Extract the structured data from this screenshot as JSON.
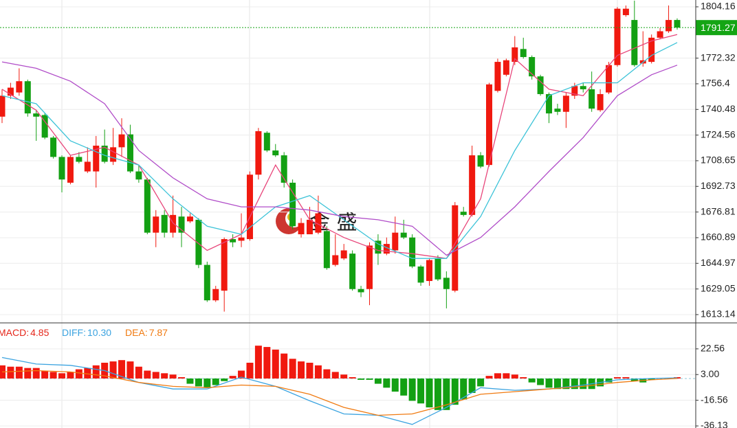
{
  "chart_data": [
    {
      "type": "candlestick",
      "open": [
        1736,
        1749,
        1751,
        1758,
        1738,
        1737,
        1723,
        1711,
        1695,
        1711,
        1702,
        1702,
        1718,
        1708,
        1717,
        1725,
        1702,
        1697,
        1664,
        1675,
        1664,
        1674,
        1671,
        1672,
        1644,
        1622,
        1628,
        1660,
        1659,
        1660,
        1700,
        1726,
        1715,
        1712,
        1695,
        1663,
        1663,
        1664,
        1665,
        1644,
        1648,
        1651,
        1629,
        1629,
        1659,
        1651,
        1653,
        1664,
        1661,
        1643,
        1634,
        1648,
        1636,
        1628,
        1677,
        1675,
        1712,
        1706,
        1752,
        1762,
        1770,
        1778,
        1773,
        1761,
        1750,
        1741,
        1739,
        1749,
        1755,
        1753,
        1740,
        1751,
        1768,
        1799,
        1796,
        1769,
        1770,
        1785,
        1789,
        1796
      ],
      "high": [
        1753,
        1757,
        1766,
        1759,
        1740,
        1738,
        1724,
        1712,
        1712,
        1714,
        1717,
        1724,
        1728,
        1729,
        1735,
        1731,
        1706,
        1698,
        1678,
        1678,
        1687,
        1680,
        1676,
        1673,
        1646,
        1631,
        1661,
        1663,
        1676,
        1702,
        1729,
        1727,
        1719,
        1714,
        1697,
        1673,
        1680,
        1687,
        1668,
        1663,
        1657,
        1653,
        1631,
        1658,
        1663,
        1661,
        1674,
        1672,
        1663,
        1644,
        1648,
        1650,
        1640,
        1683,
        1680,
        1718,
        1714,
        1757,
        1772,
        1772,
        1786,
        1785,
        1774,
        1762,
        1751,
        1744,
        1751,
        1757,
        1757,
        1764,
        1753,
        1770,
        1804,
        1805,
        1808,
        1789,
        1787,
        1791,
        1805,
        1797
      ],
      "low": [
        1732,
        1747,
        1749,
        1736,
        1721,
        1722,
        1710,
        1689,
        1694,
        1707,
        1701,
        1692,
        1707,
        1706,
        1711,
        1701,
        1695,
        1663,
        1655,
        1661,
        1661,
        1655,
        1670,
        1642,
        1621,
        1621,
        1615,
        1655,
        1655,
        1659,
        1697,
        1714,
        1711,
        1692,
        1666,
        1661,
        1663,
        1663,
        1641,
        1643,
        1647,
        1628,
        1624,
        1619,
        1644,
        1650,
        1651,
        1660,
        1642,
        1631,
        1631,
        1634,
        1617,
        1627,
        1674,
        1674,
        1704,
        1705,
        1751,
        1761,
        1768,
        1772,
        1759,
        1749,
        1732,
        1737,
        1729,
        1747,
        1751,
        1739,
        1739,
        1750,
        1767,
        1798,
        1767,
        1767,
        1769,
        1784,
        1788,
        1790
      ],
      "close": [
        1749,
        1754,
        1758,
        1738,
        1736,
        1723,
        1711,
        1697,
        1711,
        1708,
        1708,
        1718,
        1708,
        1717,
        1725,
        1702,
        1697,
        1664,
        1674,
        1664,
        1675,
        1664,
        1674,
        1644,
        1622,
        1629,
        1660,
        1658,
        1661,
        1700,
        1727,
        1715,
        1712,
        1695,
        1668,
        1670,
        1672,
        1676,
        1642,
        1650,
        1653,
        1629,
        1627,
        1656,
        1651,
        1657,
        1664,
        1661,
        1643,
        1633,
        1647,
        1635,
        1629,
        1681,
        1675,
        1712,
        1705,
        1756,
        1770,
        1771,
        1779,
        1773,
        1761,
        1750,
        1738,
        1739,
        1749,
        1755,
        1753,
        1741,
        1750,
        1768,
        1803,
        1803,
        1768,
        1771,
        1785,
        1789,
        1796,
        1791.27
      ],
      "up_color": "#f0190f",
      "down_color": "#13a013",
      "ylim": [
        1608,
        1808.4
      ],
      "yticks": [
        1613.14,
        1629.05,
        1644.97,
        1660.89,
        1676.81,
        1692.73,
        1708.65,
        1724.56,
        1740.48,
        1756.4,
        1772.32,
        1804.16
      ],
      "grid": true,
      "last_price": 1791.27,
      "last_price_color": "#14a514",
      "lines": [
        {
          "x": [
            0,
            4,
            8,
            12,
            16,
            20,
            24,
            28,
            32,
            36,
            40,
            44,
            48,
            52,
            56,
            60,
            64,
            68,
            72,
            76,
            79
          ],
          "values": [
            1753,
            1740,
            1712,
            1717,
            1706,
            1670,
            1653,
            1663,
            1706,
            1672,
            1661,
            1653,
            1651,
            1648,
            1685,
            1772,
            1753,
            1749,
            1774,
            1783,
            1787
          ],
          "color": "#e8457a"
        },
        {
          "x": [
            0,
            4,
            8,
            12,
            16,
            20,
            24,
            28,
            32,
            36,
            40,
            44,
            48,
            52,
            56,
            60,
            64,
            68,
            72,
            76,
            79
          ],
          "values": [
            1749,
            1744,
            1721,
            1712,
            1706,
            1685,
            1668,
            1663,
            1680,
            1687,
            1672,
            1657,
            1648,
            1648,
            1674,
            1715,
            1749,
            1757,
            1757,
            1774,
            1782
          ],
          "color": "#3cc3d8"
        },
        {
          "x": [
            0,
            4,
            8,
            12,
            16,
            20,
            24,
            28,
            32,
            36,
            40,
            44,
            48,
            52,
            56,
            60,
            64,
            68,
            72,
            76,
            79
          ],
          "values": [
            1770,
            1766,
            1758,
            1744,
            1715,
            1698,
            1685,
            1680,
            1680,
            1678,
            1674,
            1672,
            1668,
            1650,
            1661,
            1680,
            1702,
            1723,
            1749,
            1762,
            1768
          ],
          "color": "#b04cc8"
        }
      ],
      "watermark": "金 盛"
    },
    {
      "type": "macd",
      "readouts": [
        {
          "name": "MACD:",
          "value": 4.85,
          "color": "#e5261a"
        },
        {
          "name": "DIFF:",
          "value": 10.3,
          "label": "10.30",
          "color": "#3ba3e0"
        },
        {
          "name": "DEA:",
          "value": 7.87,
          "color": "#f07a10"
        }
      ],
      "histogram": [
        10,
        9,
        9,
        8,
        8,
        6,
        5,
        4,
        5,
        7,
        8,
        10,
        12,
        13,
        14,
        13,
        9,
        6,
        5,
        4,
        3,
        1,
        -4,
        -6,
        -7,
        -5,
        -2,
        2,
        6,
        12,
        25,
        24,
        22,
        19,
        15,
        13,
        12,
        10,
        7,
        5,
        3,
        1,
        -1,
        -1,
        -4,
        -7,
        -10,
        -13,
        -17,
        -19,
        -22,
        -24,
        -24,
        -20,
        -16,
        -11,
        -6,
        2,
        4,
        4,
        3,
        1,
        -3,
        -5,
        -7,
        -8,
        -8,
        -8,
        -8,
        -8,
        -6,
        -3,
        1,
        1,
        -2,
        -3,
        -1,
        0.5,
        0.5,
        1
      ],
      "up_color": "#f0190f",
      "down_color": "#13a013",
      "lines": [
        {
          "x": [
            0,
            4,
            8,
            12,
            16,
            20,
            24,
            28,
            32,
            36,
            40,
            44,
            48,
            52,
            56,
            60,
            64,
            68,
            72,
            76,
            79
          ],
          "values": [
            16,
            11,
            10,
            6,
            -3,
            -8,
            -8,
            1,
            -6,
            -17,
            -27,
            -28,
            -35,
            -22,
            -7,
            -9,
            -8,
            -5,
            -1,
            0,
            0.5
          ],
          "color": "#3ba3e0"
        },
        {
          "x": [
            0,
            4,
            8,
            12,
            16,
            20,
            24,
            28,
            32,
            36,
            40,
            44,
            48,
            52,
            56,
            60,
            64,
            68,
            72,
            76,
            79
          ],
          "values": [
            5,
            6,
            5,
            2,
            -3,
            -6,
            -7,
            -5,
            -6,
            -12,
            -22,
            -28,
            -27,
            -20,
            -12,
            -10,
            -8,
            -6,
            -3,
            -1,
            0
          ],
          "color": "#f07a10"
        }
      ],
      "ylim": [
        -37.7,
        41.3
      ],
      "yticks": [
        22.56,
        {
          "value": 3,
          "label": "3.00"
        },
        -16.56,
        -36.13
      ],
      "grid": true
    }
  ]
}
